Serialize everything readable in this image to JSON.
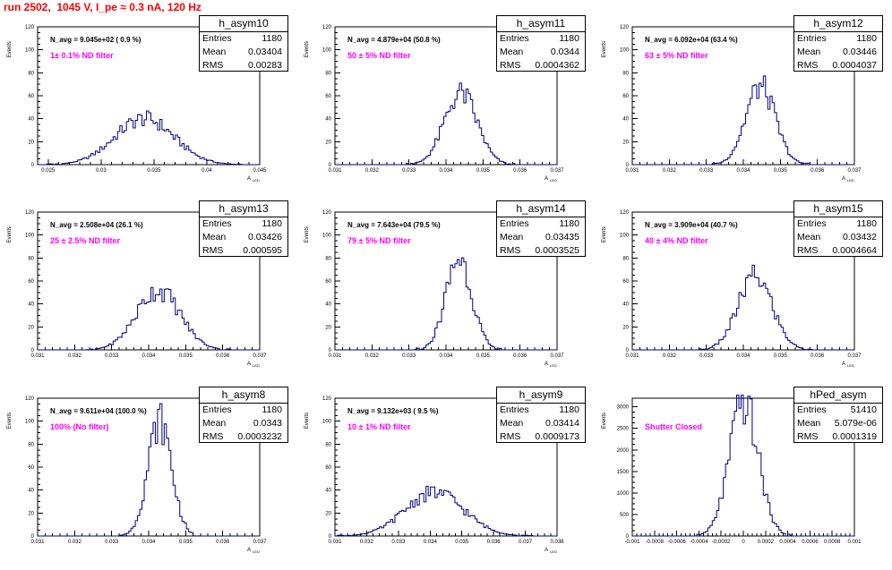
{
  "canvas": {
    "title": "run 2502,  1045 V, I_pe ≈ 0.3 nA, 120 Hz"
  },
  "chart_data": [
    {
      "type": "bar",
      "name": "h_asym10",
      "navg": "N_avg = 9.045e+02 ( 0.9 %)",
      "filter": "1± 0.1% ND filter",
      "stats": {
        "entries": "1180",
        "mean": "0.03404",
        "rms": "0.00283"
      },
      "xlim": [
        0.024,
        0.045
      ],
      "ylim": [
        0,
        120
      ],
      "xticks": [
        0.025,
        0.03,
        0.035,
        0.04,
        0.045
      ],
      "xtick_labels": [
        "0.025",
        "0.03",
        "0.035",
        "0.04",
        "0.045"
      ],
      "yticks": [
        0,
        20,
        40,
        60,
        80,
        100,
        120
      ],
      "ylabel": "Events",
      "xlabel": "A_{LED}",
      "peak": {
        "center": 0.0341,
        "sigma": 0.0028,
        "height": 40
      }
    },
    {
      "type": "bar",
      "name": "h_asym11",
      "navg": "N_avg = 4.879e+04 (50.8 %)",
      "filter": "50 ± 5% ND filter",
      "stats": {
        "entries": "1180",
        "mean": "0.0344",
        "rms": "0.0004362"
      },
      "xlim": [
        0.031,
        0.037
      ],
      "ylim": [
        0,
        120
      ],
      "xticks": [
        0.031,
        0.032,
        0.033,
        0.034,
        0.035,
        0.036,
        0.037
      ],
      "xtick_labels": [
        "0.031",
        "0.032",
        "0.033",
        "0.034",
        "0.035",
        "0.036",
        "0.037"
      ],
      "yticks": [
        0,
        20,
        40,
        60,
        80,
        100,
        120
      ],
      "ylabel": "Events",
      "xlabel": "A_{LED}",
      "peak": {
        "center": 0.0344,
        "sigma": 0.00044,
        "height": 62
      }
    },
    {
      "type": "bar",
      "name": "h_asym12",
      "navg": "N_avg = 6.092e+04 (63.4 %)",
      "filter": "63 ± 5% ND filter",
      "stats": {
        "entries": "1180",
        "mean": "0.03446",
        "rms": "0.0004037"
      },
      "xlim": [
        0.031,
        0.037
      ],
      "ylim": [
        0,
        120
      ],
      "xticks": [
        0.031,
        0.032,
        0.033,
        0.034,
        0.035,
        0.036,
        0.037
      ],
      "xtick_labels": [
        "0.031",
        "0.032",
        "0.033",
        "0.034",
        "0.035",
        "0.036",
        "0.037"
      ],
      "yticks": [
        0,
        20,
        40,
        60,
        80,
        100,
        120
      ],
      "ylabel": "Events",
      "xlabel": "A_{LED}",
      "peak": {
        "center": 0.03446,
        "sigma": 0.0004,
        "height": 68
      }
    },
    {
      "type": "bar",
      "name": "h_asym13",
      "navg": "N_avg = 2.508e+04 (26.1 %)",
      "filter": "25 ± 2.5% ND filter",
      "stats": {
        "entries": "1180",
        "mean": "0.03426",
        "rms": "0.000595"
      },
      "xlim": [
        0.031,
        0.037
      ],
      "ylim": [
        0,
        120
      ],
      "xticks": [
        0.031,
        0.032,
        0.033,
        0.034,
        0.035,
        0.036,
        0.037
      ],
      "xtick_labels": [
        "0.031",
        "0.032",
        "0.033",
        "0.034",
        "0.035",
        "0.036",
        "0.037"
      ],
      "yticks": [
        0,
        20,
        40,
        60,
        80,
        100,
        120
      ],
      "ylabel": "Events",
      "xlabel": "A_{LED}",
      "peak": {
        "center": 0.03426,
        "sigma": 0.00059,
        "height": 52
      }
    },
    {
      "type": "bar",
      "name": "h_asym14",
      "navg": "N_avg = 7.643e+04 (79.5 %)",
      "filter": "79 ± 5% ND filter",
      "stats": {
        "entries": "1180",
        "mean": "0.03435",
        "rms": "0.0003525"
      },
      "xlim": [
        0.031,
        0.037
      ],
      "ylim": [
        0,
        120
      ],
      "xticks": [
        0.031,
        0.032,
        0.033,
        0.034,
        0.035,
        0.036,
        0.037
      ],
      "xtick_labels": [
        "0.031",
        "0.032",
        "0.033",
        "0.034",
        "0.035",
        "0.036",
        "0.037"
      ],
      "yticks": [
        0,
        20,
        40,
        60,
        80,
        100,
        120
      ],
      "ylabel": "Events",
      "xlabel": "A_{LED}",
      "peak": {
        "center": 0.03435,
        "sigma": 0.00035,
        "height": 80
      }
    },
    {
      "type": "bar",
      "name": "h_asym15",
      "navg": "N_avg = 3.909e+04 (40.7 %)",
      "filter": "40 ± 4% ND filter",
      "stats": {
        "entries": "1180",
        "mean": "0.03432",
        "rms": "0.0004664"
      },
      "xlim": [
        0.031,
        0.037
      ],
      "ylim": [
        0,
        120
      ],
      "xticks": [
        0.031,
        0.032,
        0.033,
        0.034,
        0.035,
        0.036,
        0.037
      ],
      "xtick_labels": [
        "0.031",
        "0.032",
        "0.033",
        "0.034",
        "0.035",
        "0.036",
        "0.037"
      ],
      "yticks": [
        0,
        20,
        40,
        60,
        80,
        100,
        120
      ],
      "ylabel": "Events",
      "xlabel": "A_{LED}",
      "peak": {
        "center": 0.03432,
        "sigma": 0.00046,
        "height": 64
      }
    },
    {
      "type": "bar",
      "name": "h_asym8",
      "navg": "N_avg = 9.611e+04 (100.0 %)",
      "filter": "100% (No filter)",
      "stats": {
        "entries": "1180",
        "mean": "0.0343",
        "rms": "0.0003232"
      },
      "xlim": [
        0.031,
        0.037
      ],
      "ylim": [
        0,
        120
      ],
      "xticks": [
        0.031,
        0.032,
        0.033,
        0.034,
        0.035,
        0.036,
        0.037
      ],
      "xtick_labels": [
        "0.031",
        "0.032",
        "0.033",
        "0.034",
        "0.035",
        "0.036",
        "0.037"
      ],
      "yticks": [
        0,
        20,
        40,
        60,
        80,
        100,
        120
      ],
      "ylabel": "Events",
      "xlabel": "A_{LED}",
      "peak": {
        "center": 0.0343,
        "sigma": 0.00032,
        "height": 100
      }
    },
    {
      "type": "bar",
      "name": "h_asym9",
      "navg": "N_avg = 9.132e+03 ( 9.5 %)",
      "filter": "10 ± 1% ND filter",
      "stats": {
        "entries": "1180",
        "mean": "0.03414",
        "rms": "0.0009173"
      },
      "xlim": [
        0.031,
        0.038
      ],
      "ylim": [
        0,
        120
      ],
      "xticks": [
        0.031,
        0.032,
        0.033,
        0.034,
        0.035,
        0.036,
        0.037,
        0.038
      ],
      "xtick_labels": [
        "0.031",
        "0.032",
        "0.033",
        "0.034",
        "0.035",
        "0.036",
        "0.037",
        "0.038"
      ],
      "yticks": [
        0,
        20,
        40,
        60,
        80,
        100,
        120
      ],
      "ylabel": "Events",
      "xlabel": "A_{LED}",
      "peak": {
        "center": 0.03414,
        "sigma": 0.00092,
        "height": 38
      }
    },
    {
      "type": "bar",
      "name": "hPed_asym",
      "navg": "",
      "filter": "Shutter Closed",
      "stats": {
        "entries": "51410",
        "mean": "5.079e-06",
        "rms": "0.0001319"
      },
      "xlim": [
        -0.001,
        0.001
      ],
      "ylim": [
        0,
        3200
      ],
      "xticks": [
        -0.001,
        -0.0008,
        -0.0006,
        -0.0004,
        -0.0002,
        0,
        0.0002,
        0.0004,
        0.0006,
        0.0008,
        0.001
      ],
      "xtick_labels": [
        "-0.001",
        "-0.0008",
        "-0.0006",
        "-0.0004",
        "-0.0002",
        "0",
        "0.0002",
        "0.0004",
        "0.0006",
        "0.0008",
        "0.001"
      ],
      "yticks": [
        0,
        500,
        1000,
        1500,
        2000,
        2500,
        3000
      ],
      "ylabel": "Events",
      "xlabel": "",
      "peak": {
        "center": 5e-06,
        "sigma": 0.00013,
        "height": 3080
      }
    }
  ]
}
